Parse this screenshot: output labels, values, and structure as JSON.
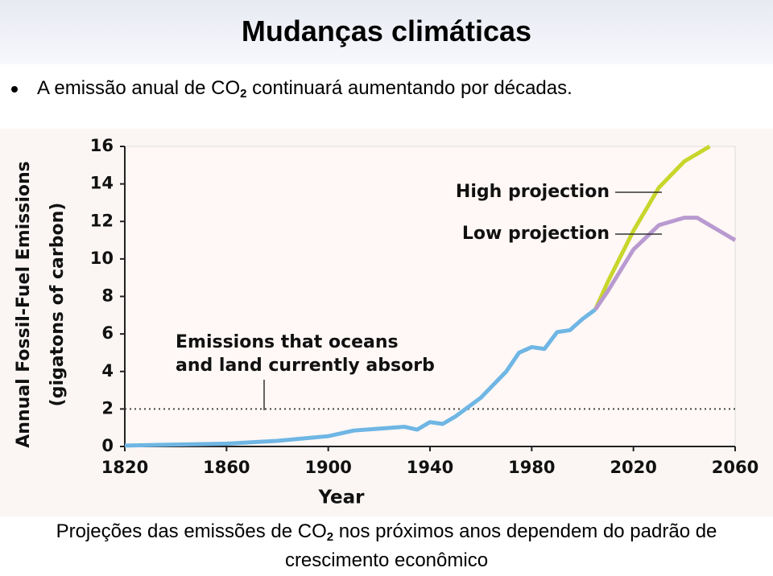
{
  "title": "Mudanças climáticas",
  "bullet": {
    "before": "A emissão anual de CO",
    "sub": "2",
    "after": "continuará aumentando por décadas."
  },
  "caption": {
    "before": "Projeções das emissões de CO",
    "sub": "2",
    "after": "nos próximos anos dependem do padrão de",
    "line2": "crescimento econômico"
  },
  "chart_data": {
    "type": "line",
    "ylabel": [
      "Annual Fossil-Fuel Emissions",
      "(gigatons of carbon)"
    ],
    "xlabel": "Year",
    "xlim": [
      1820,
      2060
    ],
    "xticks": [
      1820,
      1860,
      1900,
      1940,
      1980,
      2020,
      2060
    ],
    "ylim": [
      0,
      16
    ],
    "yticks": [
      0,
      2,
      4,
      6,
      8,
      10,
      12,
      14,
      16
    ],
    "reference_line": {
      "value": 2,
      "label": [
        "Emissions that oceans",
        "and land currently absorb"
      ]
    },
    "series": [
      {
        "color": "#6fb6e4",
        "x": [
          1820,
          1840,
          1860,
          1880,
          1900,
          1910,
          1920,
          1930,
          1935,
          1940,
          1945,
          1950,
          1960,
          1970,
          1975,
          1980,
          1985,
          1990,
          1995,
          2000,
          2005
        ],
        "values": [
          0.05,
          0.1,
          0.15,
          0.3,
          0.55,
          0.85,
          0.95,
          1.05,
          0.9,
          1.3,
          1.2,
          1.6,
          2.6,
          4.0,
          5.0,
          5.3,
          5.2,
          6.1,
          6.2,
          6.8,
          7.3
        ]
      },
      {
        "name": "High projection",
        "color": "#c8d62c",
        "x": [
          2005,
          2010,
          2020,
          2030,
          2040,
          2050
        ],
        "values": [
          7.3,
          8.8,
          11.5,
          13.8,
          15.2,
          16
        ]
      },
      {
        "name": "Low projection",
        "color": "#b99ad0",
        "x": [
          2005,
          2010,
          2020,
          2030,
          2040,
          2045,
          2050,
          2060
        ],
        "values": [
          7.3,
          8.3,
          10.5,
          11.8,
          12.2,
          12.2,
          11.8,
          11.0
        ]
      }
    ]
  }
}
